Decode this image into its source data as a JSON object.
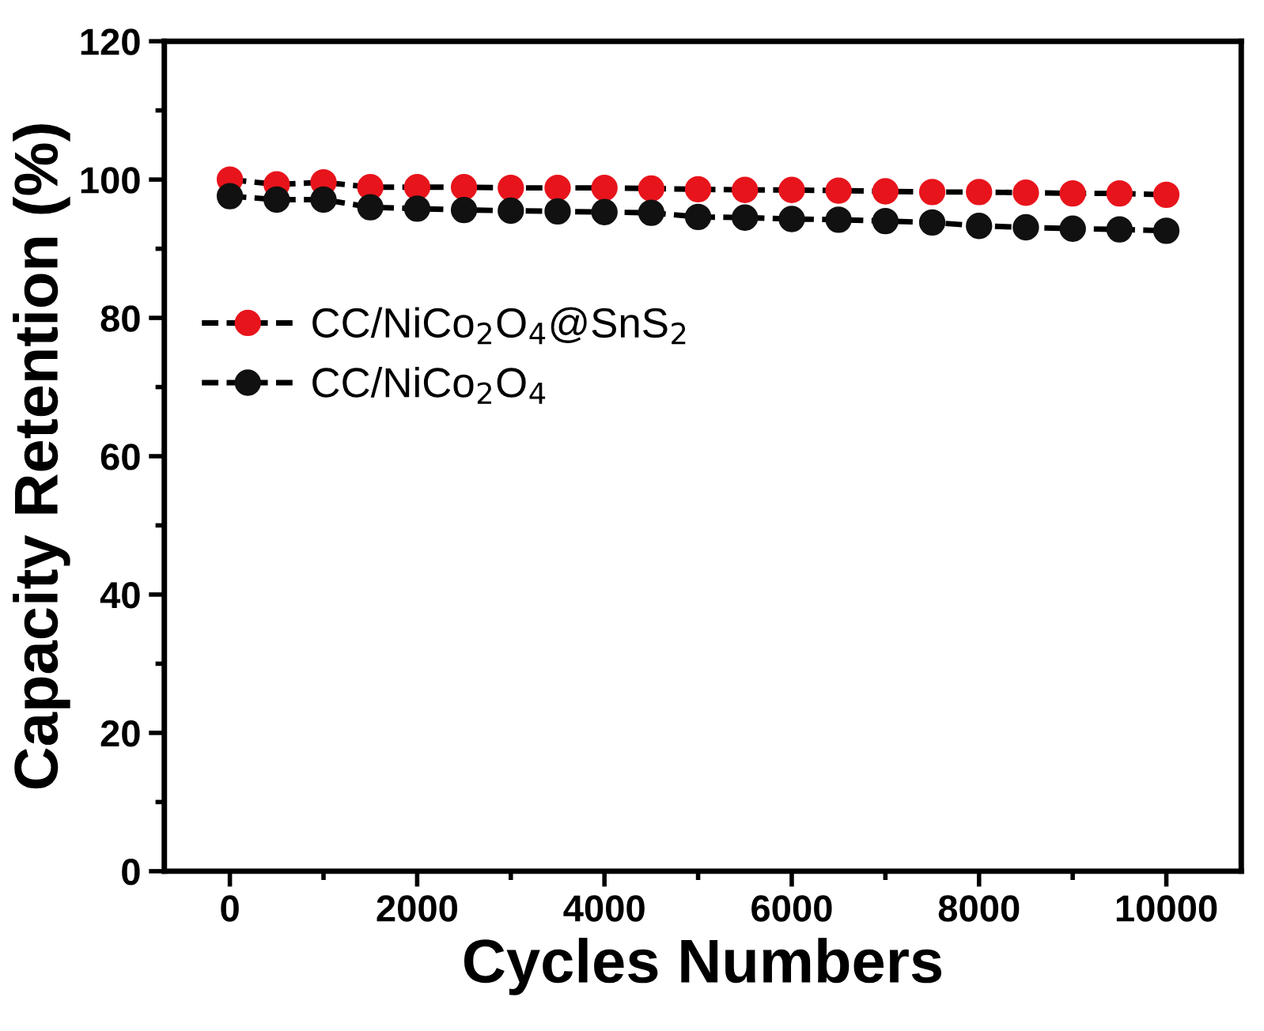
{
  "chart_data": {
    "type": "line",
    "xlabel": "Cycles Numbers",
    "ylabel": "Capacity Retention (%)",
    "x": [
      0,
      500,
      1000,
      1500,
      2000,
      2500,
      3000,
      3500,
      4000,
      4500,
      5000,
      5500,
      6000,
      6500,
      7000,
      7500,
      8000,
      8500,
      9000,
      9500,
      10000
    ],
    "series": [
      {
        "name": "CC/NiCo$_{2}$O$_{4}$@SnS$_{2}$",
        "color": "#e8141c",
        "values": [
          100,
          99.3,
          99.6,
          98.9,
          98.9,
          98.9,
          98.8,
          98.8,
          98.8,
          98.7,
          98.6,
          98.5,
          98.5,
          98.4,
          98.3,
          98.2,
          98.2,
          98.1,
          98.0,
          98.0,
          97.8
        ]
      },
      {
        "name": "CC/NiCo$_{2}$O$_{4}$",
        "color": "#111111",
        "values": [
          97.6,
          97.1,
          97.1,
          96.0,
          95.8,
          95.6,
          95.5,
          95.4,
          95.3,
          95.2,
          94.6,
          94.5,
          94.3,
          94.2,
          94.0,
          93.8,
          93.3,
          93.1,
          92.9,
          92.8,
          92.6
        ]
      }
    ],
    "xlim": [
      -700,
      10800
    ],
    "ylim": [
      0,
      120
    ],
    "xticks": [
      0,
      2000,
      4000,
      6000,
      8000,
      10000
    ],
    "yticks": [
      0,
      20,
      40,
      60,
      80,
      100,
      120
    ],
    "marker": "circle",
    "line_style": "dashed",
    "grid": false,
    "legend": "center left"
  }
}
